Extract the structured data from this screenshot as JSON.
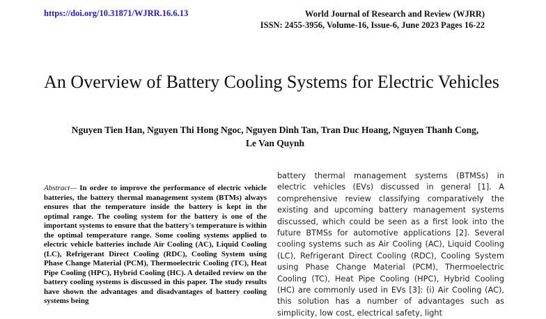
{
  "header": {
    "doi": "https://doi.org/10.31871/WJRR.16.6.13",
    "journal_name": "World Journal of Research and Review (WJRR)",
    "journal_issue": "ISSN: 2455-3956, Volume-16, Issue-6, June 2023 Pages 16-22"
  },
  "paper": {
    "title": "An Overview of Battery Cooling Systems for Electric Vehicles",
    "authors": "Nguyen Tien Han, Nguyen Thi Hong Ngoc, Nguyen Dinh Tan, Tran Duc Hoang, Nguyen Thanh Cong, Le Van Quynh"
  },
  "abstract": {
    "label": "Abstract—",
    "text": " In order to improve the performance of electric vehicle batteries, the battery thermal management system (BTMs) always ensures that the temperature inside the battery is kept in the optimal range. The cooling system for the battery is one of the important systems to ensure that the battery's temperature is within the optimal temperature range. Some cooling systems applied to electric vehicle batteries include Air Cooling (AC), Liquid Cooling (LC), Refrigerant Direct Cooling (RDC), Cooling System using Phase Change Material (PCM), Thermoelectric Cooling (TC), Heat Pipe Cooling (HPC), Hybrid Cooling (HC). A detailed review on the battery cooling systems is discussed in this paper. The study results have shown the advantages and disadvantages of battery cooling systems being"
  },
  "body": {
    "column2_text": "battery thermal management systems (BTMSs) in electric vehicles (EVs) discussed in general [1]. A comprehensive review classifying comparatively the existing and upcoming battery management systems discussed, which could be seen as a first look into the future BTMSs for automotive applications [2]. Several cooling systems such as Air Cooling (AC), Liquid Cooling (LC), Refrigerant Direct Cooling (RDC), Cooling System using Phase Change Material (PCM), Thermoelectric Cooling (TC), Heat Pipe Cooling (HPC), Hybrid Cooling (HC) are commonly used in EVs [3]: (i) Air Cooling (AC), this solution has a number of advantages such as simplicity, low cost, electrical safety, light"
  }
}
